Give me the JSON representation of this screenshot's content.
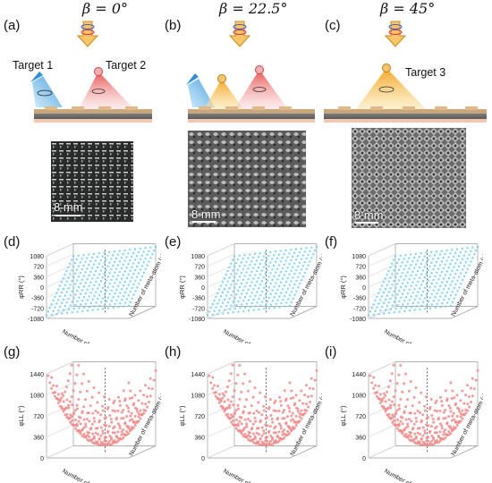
{
  "header": {
    "betas": [
      "β = 0°",
      "β = 22.5°",
      "β = 45°"
    ]
  },
  "panels": {
    "a": "(a)",
    "b": "(b)",
    "c": "(c)",
    "d": "(d)",
    "e": "(e)",
    "f": "(f)",
    "g": "(g)",
    "h": "(h)",
    "i": "(i)"
  },
  "targets": {
    "t1": "Target 1",
    "t2": "Target 2",
    "t3": "Target 3"
  },
  "photos": {
    "scale_label": "8 mm"
  },
  "plots_rr": {
    "ylabel": "φRR (°)",
    "ticks": [
      "1080",
      "720",
      "360",
      "0",
      "-360",
      "-720",
      "-1080"
    ],
    "xlabel_front": "Number of meta-atom (y)",
    "xlabel_side": "Number of meta-atom (x)"
  },
  "plots_ll": {
    "ylabel": "φLL (°)",
    "ticks": [
      "1440",
      "1080",
      "720",
      "360",
      "0"
    ],
    "xlabel_front": "Number of meta-atom (y)",
    "xlabel_side": "Number of meta-atom (x)"
  },
  "colors": {
    "blue_surface": "#6ecbf2",
    "red_surface": "#f08a8a",
    "arrow_fill": "#f7c56a",
    "substrate_top": "#8b8b8b",
    "substrate_bottom": "#f3c6b0"
  }
}
